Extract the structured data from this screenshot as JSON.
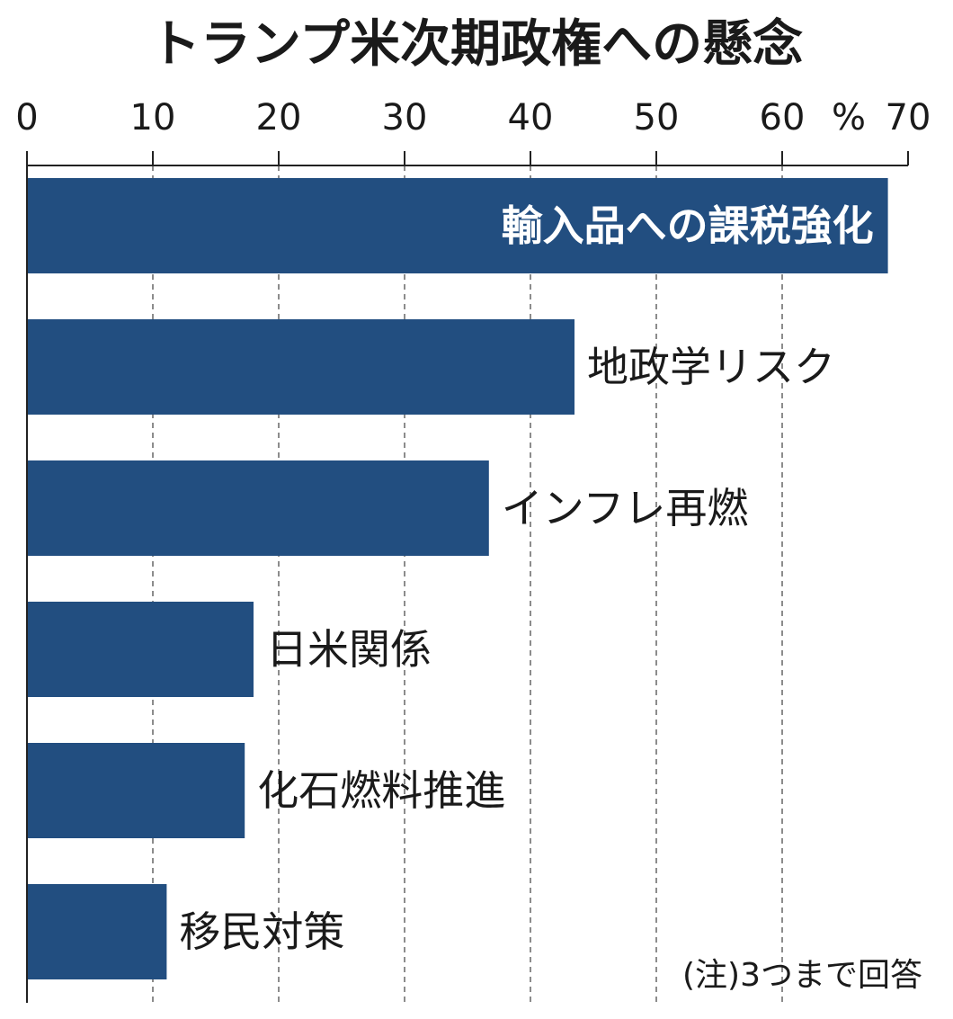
{
  "chart_data": {
    "type": "bar",
    "orientation": "horizontal",
    "title": "トランプ米次期政権への懸念",
    "unit_label": "%",
    "xlim": [
      0,
      70
    ],
    "ticks": [
      0,
      10,
      20,
      30,
      40,
      50,
      60,
      70
    ],
    "grid": true,
    "categories": [
      "輸入品への課税強化",
      "地政学リスク",
      "インフレ再燃",
      "日米関係",
      "化石燃料推進",
      "移民対策"
    ],
    "values": [
      68.4,
      43.5,
      36.7,
      18,
      17.3,
      11.1
    ],
    "note": "(注)3つまで回答",
    "colors": {
      "bar": "#224e80",
      "inside_label": "#ffffff",
      "outside_label": "#1a1a1a",
      "axis": "#222222",
      "grid": "#666666"
    }
  }
}
